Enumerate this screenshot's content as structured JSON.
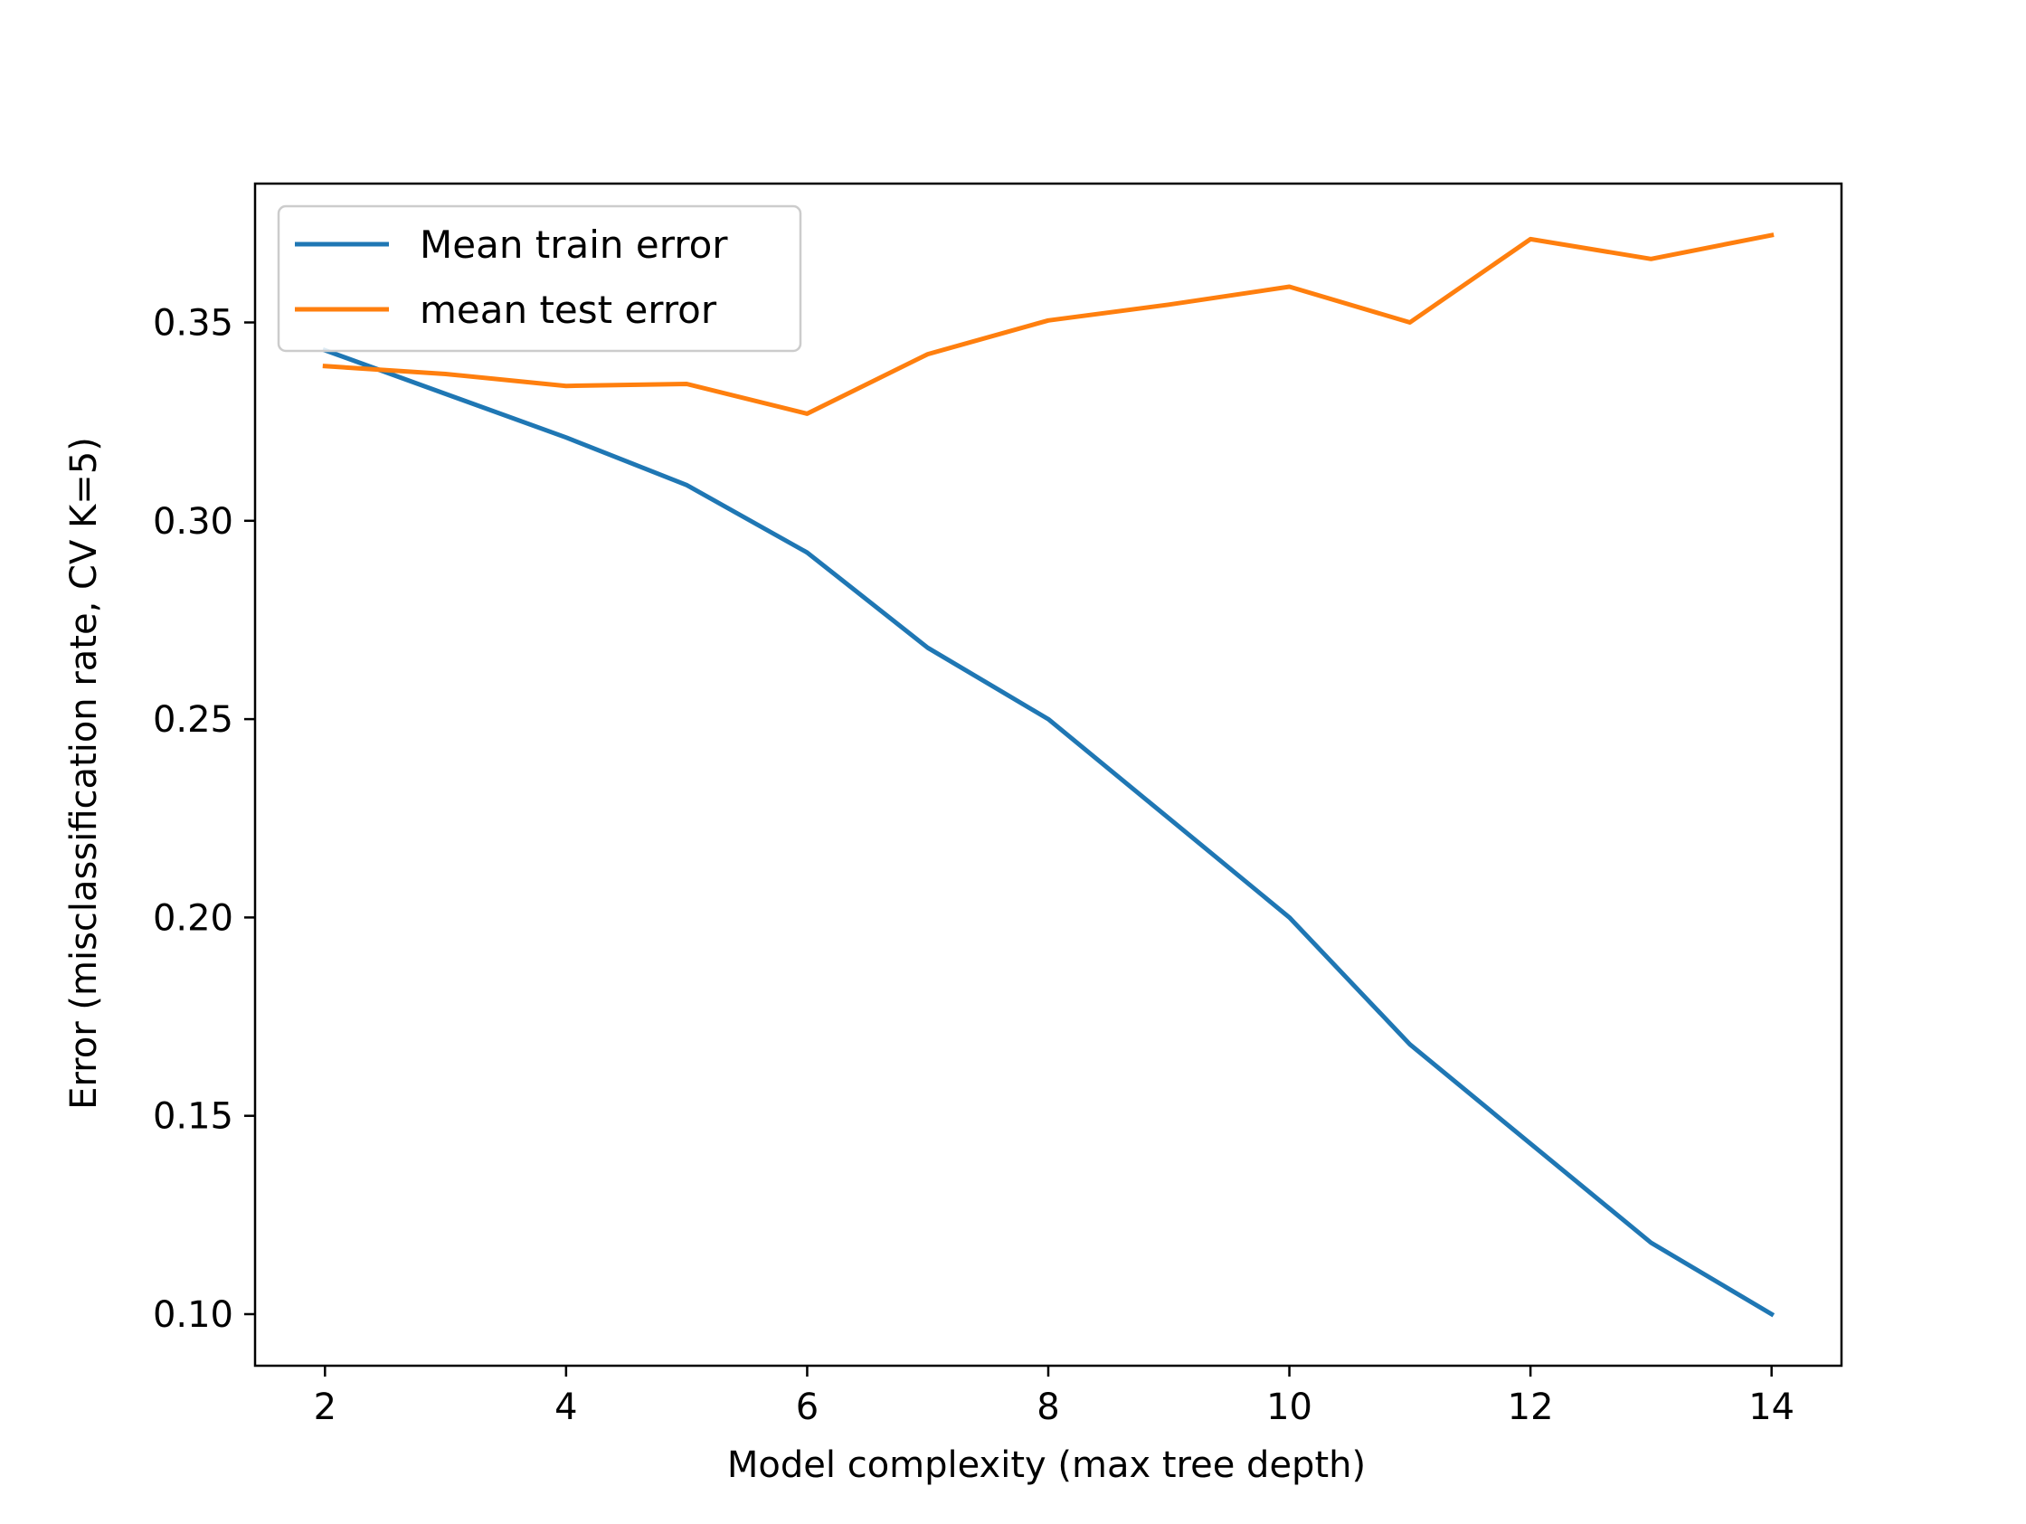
{
  "chart_data": {
    "type": "line",
    "title": "",
    "xlabel": "Model complexity (max tree depth)",
    "ylabel": "Error (misclassification rate, CV K=5)",
    "xlim": [
      1.42,
      14.58
    ],
    "ylim": [
      0.087,
      0.385
    ],
    "xticks": [
      2,
      4,
      6,
      8,
      10,
      12,
      14
    ],
    "xtick_labels": [
      "2",
      "4",
      "6",
      "8",
      "10",
      "12",
      "14"
    ],
    "yticks": [
      0.1,
      0.15,
      0.2,
      0.25,
      0.3,
      0.35
    ],
    "ytick_labels": [
      "0.10",
      "0.15",
      "0.20",
      "0.25",
      "0.30",
      "0.35"
    ],
    "grid": false,
    "legend_position": "top-left",
    "x": [
      2,
      3,
      4,
      5,
      6,
      7,
      8,
      9,
      10,
      11,
      12,
      13,
      14
    ],
    "series": [
      {
        "name": "Mean train error",
        "color": "#1f77b4",
        "values": [
          0.343,
          0.332,
          0.321,
          0.309,
          0.292,
          0.268,
          0.25,
          0.225,
          0.2,
          0.168,
          0.143,
          0.118,
          0.1
        ]
      },
      {
        "name": "mean test error",
        "color": "#ff7f0e",
        "values": [
          0.339,
          0.337,
          0.334,
          0.3345,
          0.327,
          0.342,
          0.3505,
          0.3545,
          0.359,
          0.35,
          0.371,
          0.366,
          0.372
        ]
      }
    ]
  }
}
